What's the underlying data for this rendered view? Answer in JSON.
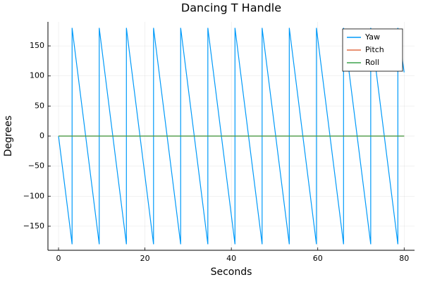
{
  "chart_data": {
    "type": "line",
    "title": "Dancing T Handle",
    "x_label": "Seconds",
    "y_label": "Degrees",
    "x": [
      0,
      3.14,
      3.14,
      9.42,
      9.42,
      15.71,
      15.71,
      21.99,
      21.99,
      28.27,
      28.27,
      34.56,
      34.56,
      40.84,
      40.84,
      47.12,
      47.12,
      53.41,
      53.41,
      59.69,
      59.69,
      65.97,
      65.97,
      72.26,
      72.26,
      78.54,
      78.54,
      80
    ],
    "series": [
      {
        "name": "Yaw",
        "color": "#009af9",
        "values": [
          0,
          -180,
          180,
          -180,
          180,
          -180,
          180,
          -180,
          180,
          -180,
          180,
          -180,
          180,
          -180,
          180,
          -180,
          180,
          -180,
          180,
          -180,
          180,
          -180,
          180,
          -180,
          180,
          -180,
          180,
          106
        ]
      },
      {
        "name": "Pitch",
        "color": "#e26f46",
        "values": [
          0,
          0,
          0,
          0,
          0,
          0,
          0,
          0,
          0,
          0,
          0,
          0,
          0,
          0,
          0,
          0,
          0,
          0,
          0,
          0,
          0,
          0,
          0,
          0,
          0,
          0,
          0,
          0
        ]
      },
      {
        "name": "Roll",
        "color": "#3da44d",
        "values": [
          0,
          0,
          0,
          0,
          0,
          0,
          0,
          0,
          0,
          0,
          0,
          0,
          0,
          0,
          0,
          0,
          0,
          0,
          0,
          0,
          0,
          0,
          0,
          0,
          0,
          0,
          0,
          0
        ]
      }
    ],
    "xlim": [
      -2.45,
      82.4
    ],
    "xticks": [
      0,
      20,
      40,
      60,
      80
    ],
    "ylim": [
      -190,
      190
    ],
    "yticks": [
      {
        "value": -150,
        "label": "−150"
      },
      {
        "value": -100,
        "label": "−100"
      },
      {
        "value": -50,
        "label": "−50"
      },
      0,
      50,
      100,
      150
    ],
    "grid": true,
    "legend": "top-right"
  }
}
